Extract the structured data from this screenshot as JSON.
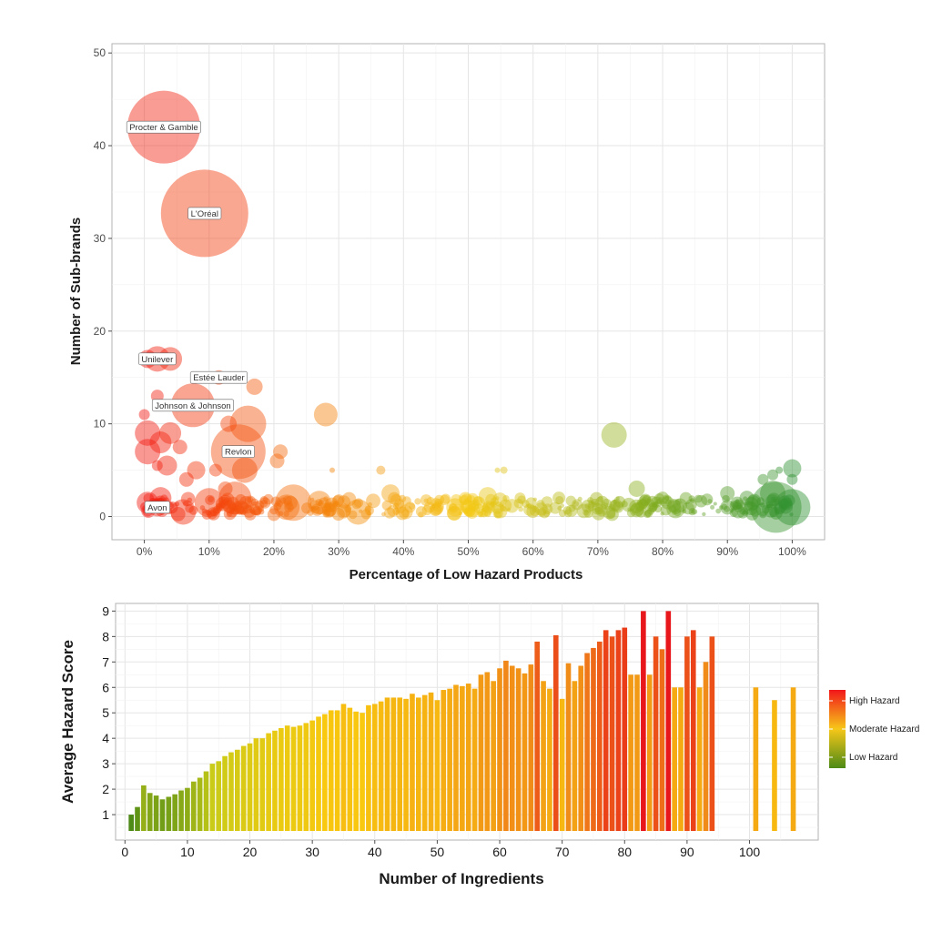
{
  "chart_data": [
    {
      "type": "scatter",
      "subtype": "bubble",
      "xlabel": "Percentage of Low Hazard Products",
      "ylabel": "Number of Sub-brands",
      "xlim": [
        -0.05,
        1.05
      ],
      "ylim": [
        -2.5,
        51
      ],
      "x_ticks": [
        0,
        0.1,
        0.2,
        0.3,
        0.4,
        0.5,
        0.6,
        0.7,
        0.8,
        0.9,
        1.0
      ],
      "x_tick_labels": [
        "0%",
        "10%",
        "20%",
        "30%",
        "40%",
        "50%",
        "60%",
        "70%",
        "80%",
        "90%",
        "100%"
      ],
      "y_ticks": [
        0,
        10,
        20,
        30,
        40,
        50
      ],
      "y_tick_labels": [
        "0",
        "10",
        "20",
        "30",
        "40",
        "50"
      ],
      "grid": true,
      "color_scale": [
        "#f2170f",
        "#f47a0d",
        "#f5c916",
        "#8fb11f",
        "#2f9131"
      ],
      "labeled_points": [
        {
          "label": "Procter & Gamble",
          "x": 0.03,
          "y": 42.0,
          "size": 40
        },
        {
          "label": "L'Oréal",
          "x": 0.093,
          "y": 32.7,
          "size": 48
        },
        {
          "label": "Unilever",
          "x": 0.02,
          "y": 17.0,
          "size": 14
        },
        {
          "label": "Estée Lauder",
          "x": 0.115,
          "y": 15.0,
          "size": 8
        },
        {
          "label": "Johnson & Johnson",
          "x": 0.075,
          "y": 12.0,
          "size": 24
        },
        {
          "label": "Revlon",
          "x": 0.145,
          "y": 7.0,
          "size": 30
        },
        {
          "label": "Avon",
          "x": 0.02,
          "y": 1.0,
          "size": 10
        }
      ],
      "points": [
        {
          "x": 0.005,
          "y": 17.0,
          "size": 10
        },
        {
          "x": 0.04,
          "y": 17.0,
          "size": 13
        },
        {
          "x": 0.02,
          "y": 13.0,
          "size": 7
        },
        {
          "x": 0.0,
          "y": 11.0,
          "size": 6
        },
        {
          "x": 0.005,
          "y": 9.0,
          "size": 14
        },
        {
          "x": 0.005,
          "y": 7.0,
          "size": 14
        },
        {
          "x": 0.025,
          "y": 8.0,
          "size": 12
        },
        {
          "x": 0.04,
          "y": 9.0,
          "size": 12
        },
        {
          "x": 0.035,
          "y": 5.5,
          "size": 11
        },
        {
          "x": 0.055,
          "y": 7.5,
          "size": 8
        },
        {
          "x": 0.02,
          "y": 5.5,
          "size": 6
        },
        {
          "x": 0.08,
          "y": 5.0,
          "size": 10
        },
        {
          "x": 0.065,
          "y": 4.0,
          "size": 8
        },
        {
          "x": 0.11,
          "y": 5.0,
          "size": 7
        },
        {
          "x": 0.13,
          "y": 10.0,
          "size": 9
        },
        {
          "x": 0.17,
          "y": 14.0,
          "size": 9
        },
        {
          "x": 0.16,
          "y": 10.0,
          "size": 20
        },
        {
          "x": 0.155,
          "y": 5.0,
          "size": 14
        },
        {
          "x": 0.21,
          "y": 7.0,
          "size": 8
        },
        {
          "x": 0.205,
          "y": 6.0,
          "size": 8
        },
        {
          "x": 0.125,
          "y": 3.0,
          "size": 8
        },
        {
          "x": 0.27,
          "y": 1.5,
          "size": 13
        },
        {
          "x": 0.28,
          "y": 11.0,
          "size": 13
        },
        {
          "x": 0.29,
          "y": 5.0,
          "size": 3
        },
        {
          "x": 0.365,
          "y": 5.0,
          "size": 5
        },
        {
          "x": 0.545,
          "y": 5.0,
          "size": 3
        },
        {
          "x": 0.555,
          "y": 5.0,
          "size": 4
        },
        {
          "x": 0.725,
          "y": 8.8,
          "size": 14
        },
        {
          "x": 0.97,
          "y": 4.5,
          "size": 6
        },
        {
          "x": 0.98,
          "y": 5.0,
          "size": 4
        },
        {
          "x": 1.0,
          "y": 5.2,
          "size": 10
        },
        {
          "x": 1.0,
          "y": 4.0,
          "size": 6
        },
        {
          "x": 0.955,
          "y": 4.0,
          "size": 6
        },
        {
          "x": 0.97,
          "y": 2.5,
          "size": 14
        },
        {
          "x": 0.975,
          "y": 1.0,
          "size": 28
        },
        {
          "x": 1.0,
          "y": 1.0,
          "size": 20
        },
        {
          "x": 0.76,
          "y": 3.0,
          "size": 9
        },
        {
          "x": 0.8,
          "y": 2.0,
          "size": 7
        },
        {
          "x": 0.9,
          "y": 2.5,
          "size": 8
        },
        {
          "x": 0.93,
          "y": 2.0,
          "size": 8
        },
        {
          "x": 0.53,
          "y": 2.2,
          "size": 10
        },
        {
          "x": 0.38,
          "y": 2.5,
          "size": 10
        },
        {
          "x": 0.64,
          "y": 2.0,
          "size": 7
        },
        {
          "x": 0.58,
          "y": 2.0,
          "size": 6
        },
        {
          "x": 0.23,
          "y": 1.5,
          "size": 20
        },
        {
          "x": 0.22,
          "y": 1.0,
          "size": 14
        },
        {
          "x": 0.33,
          "y": 0.5,
          "size": 14
        },
        {
          "x": 0.1,
          "y": 1.5,
          "size": 16
        },
        {
          "x": 0.14,
          "y": 2.0,
          "size": 18
        },
        {
          "x": 0.06,
          "y": 0.5,
          "size": 14
        },
        {
          "x": 0.025,
          "y": 2.0,
          "size": 12
        },
        {
          "x": 0.005,
          "y": 1.5,
          "size": 12
        },
        {
          "x": 0.48,
          "y": 1.0,
          "size": 10
        },
        {
          "x": 0.5,
          "y": 1.0,
          "size": 8
        },
        {
          "x": 0.82,
          "y": 0.8,
          "size": 10
        },
        {
          "x": 0.9,
          "y": 1.0,
          "size": 8
        },
        {
          "x": 0.44,
          "y": 1.0,
          "size": 6
        },
        {
          "x": 0.41,
          "y": 1.0,
          "size": 6
        }
      ]
    },
    {
      "type": "bar",
      "xlabel": "Number of Ingredients",
      "ylabel": "Average Hazard Score",
      "xlim": [
        -1.5,
        111
      ],
      "ylim": [
        0,
        9.3
      ],
      "x_ticks": [
        0,
        10,
        20,
        30,
        40,
        50,
        60,
        70,
        80,
        90,
        100
      ],
      "x_tick_labels": [
        "0",
        "10",
        "20",
        "30",
        "40",
        "50",
        "60",
        "70",
        "80",
        "90",
        "100"
      ],
      "y_ticks": [
        1,
        2,
        3,
        4,
        5,
        6,
        7,
        8,
        9
      ],
      "y_tick_labels": [
        "1",
        "2",
        "3",
        "4",
        "5",
        "6",
        "7",
        "8",
        "9"
      ],
      "grid": true,
      "x": [
        1,
        2,
        3,
        4,
        5,
        6,
        7,
        8,
        9,
        10,
        11,
        12,
        13,
        14,
        15,
        16,
        17,
        18,
        19,
        20,
        21,
        22,
        23,
        24,
        25,
        26,
        27,
        28,
        29,
        30,
        31,
        32,
        33,
        34,
        35,
        36,
        37,
        38,
        39,
        40,
        41,
        42,
        43,
        44,
        45,
        46,
        47,
        48,
        49,
        50,
        51,
        52,
        53,
        54,
        55,
        56,
        57,
        58,
        59,
        60,
        61,
        62,
        63,
        64,
        65,
        66,
        67,
        68,
        69,
        70,
        71,
        72,
        73,
        74,
        75,
        76,
        77,
        78,
        79,
        80,
        81,
        82,
        83,
        84,
        85,
        86,
        87,
        88,
        89,
        90,
        91,
        92,
        93,
        94,
        101,
        104,
        107
      ],
      "values": [
        1.0,
        1.3,
        2.15,
        1.85,
        1.75,
        1.6,
        1.7,
        1.8,
        1.95,
        2.05,
        2.3,
        2.45,
        2.7,
        3.0,
        3.1,
        3.3,
        3.45,
        3.55,
        3.7,
        3.8,
        4.0,
        4.0,
        4.2,
        4.3,
        4.4,
        4.5,
        4.45,
        4.5,
        4.6,
        4.7,
        4.85,
        4.95,
        5.1,
        5.1,
        5.35,
        5.2,
        5.05,
        5.0,
        5.3,
        5.35,
        5.45,
        5.6,
        5.6,
        5.6,
        5.55,
        5.75,
        5.6,
        5.7,
        5.8,
        5.5,
        5.9,
        5.95,
        6.1,
        6.05,
        6.15,
        5.95,
        6.5,
        6.6,
        6.25,
        6.75,
        7.05,
        6.85,
        6.75,
        6.55,
        6.9,
        7.8,
        6.25,
        5.95,
        8.05,
        5.55,
        6.95,
        6.25,
        6.85,
        7.35,
        7.55,
        7.8,
        8.25,
        8.0,
        8.25,
        8.35,
        6.5,
        6.5,
        9.0,
        6.5,
        8.0,
        7.5,
        9.0,
        6.0,
        6.0,
        8.0,
        8.25,
        6.0,
        7.0,
        8.0,
        6.0,
        5.5,
        6.0
      ],
      "color_scale": [
        "#4d8a16",
        "#c9cb18",
        "#f9c90f",
        "#f08a18",
        "#e8171b"
      ],
      "legend": {
        "position": "right",
        "labels": [
          "High Hazard",
          "Moderate Hazard",
          "Low Hazard"
        ],
        "colors": [
          "#f2171a",
          "#f6c719",
          "#4d8a16"
        ]
      }
    }
  ]
}
